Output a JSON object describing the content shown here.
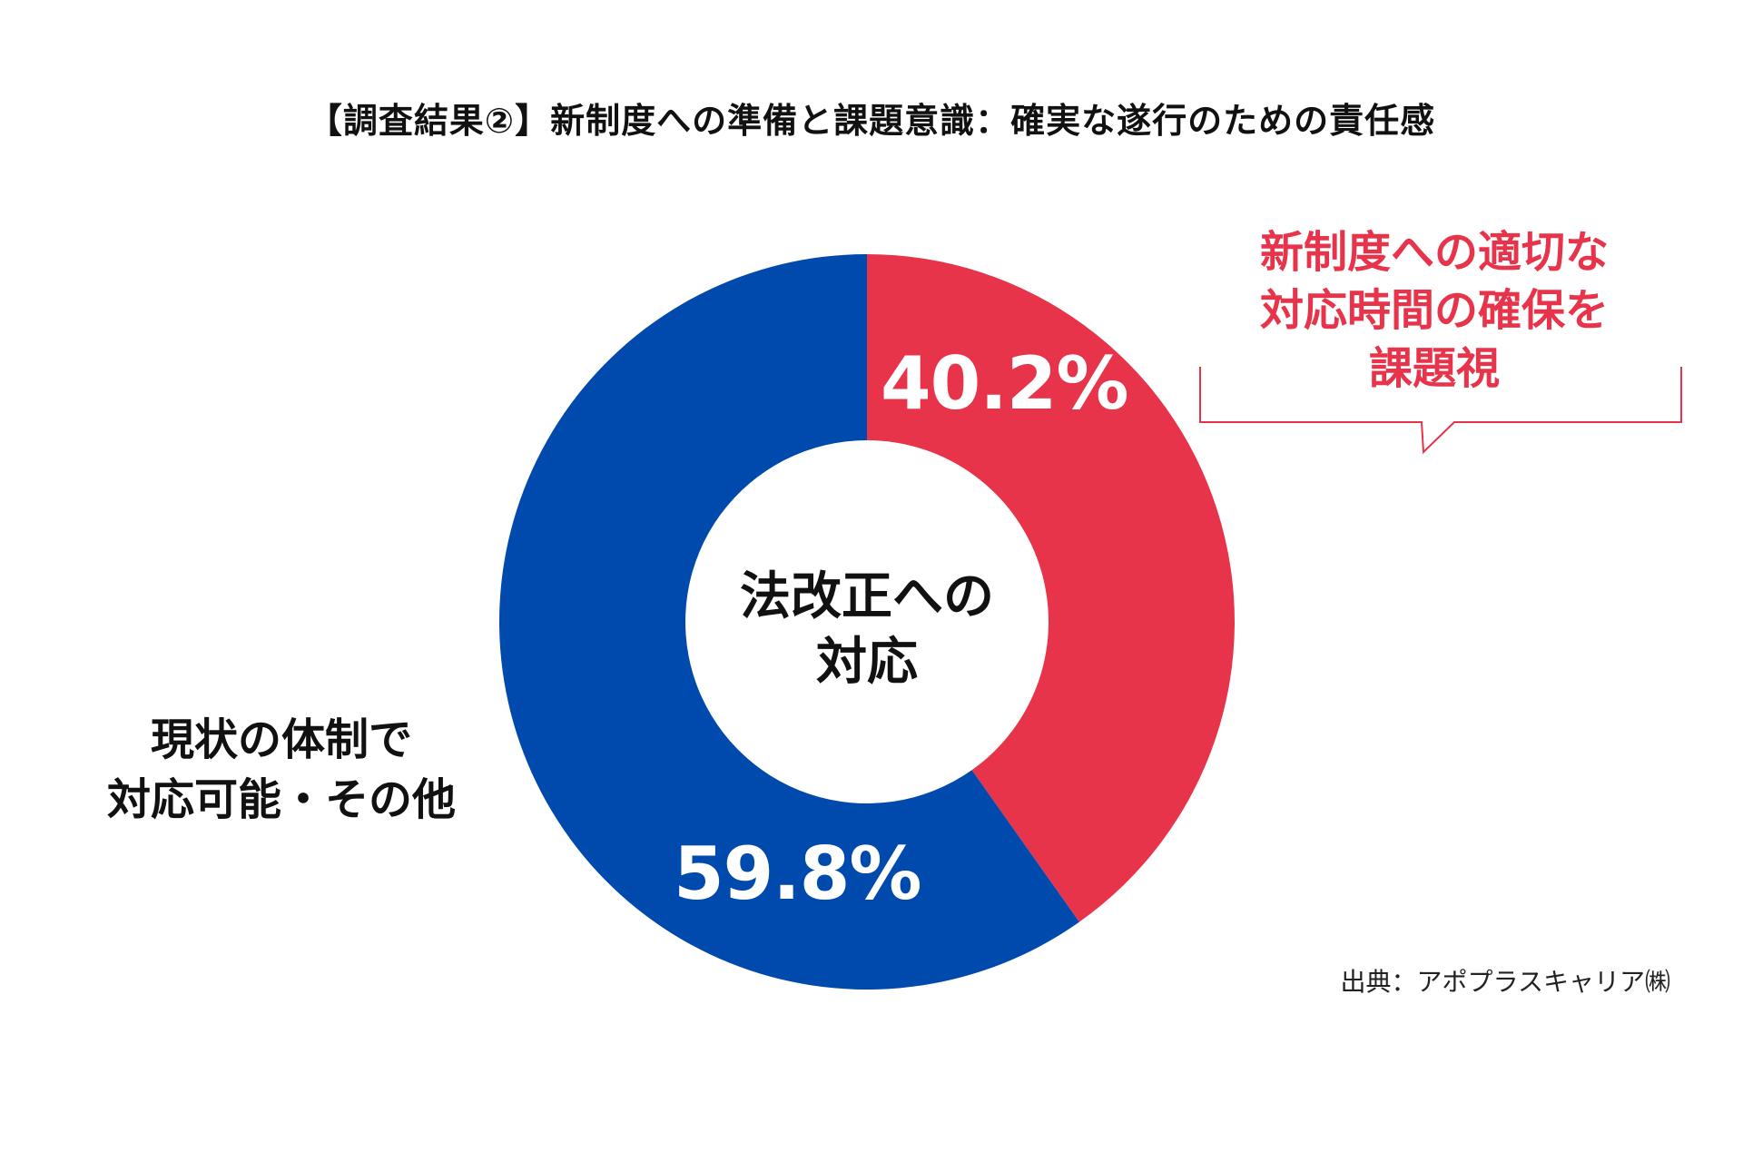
{
  "title": "【調査結果②】新制度への準備と課題意識：確実な遂行のための責任感",
  "center_label": [
    "法改正への",
    "対応"
  ],
  "labels": {
    "left": [
      "現状の体制で",
      "対応可能・その他"
    ],
    "callout": [
      "新制度への適切な",
      "対応時間の確保を",
      "課題視"
    ]
  },
  "source": "出典：アポプラスキャリア㈱",
  "colors": {
    "red": "#E8344A",
    "blue": "#004AAD",
    "text": "#111111"
  },
  "chart_data": {
    "type": "pie",
    "donut": true,
    "start": "top",
    "direction": "clockwise",
    "slices": [
      {
        "label": "新制度への適切な対応時間の確保を課題視",
        "value": 40.2,
        "display": "40.2%",
        "color": "#E8344A"
      },
      {
        "label": "現状の体制で対応可能・その他",
        "value": 59.8,
        "display": "59.8%",
        "color": "#004AAD"
      }
    ]
  }
}
